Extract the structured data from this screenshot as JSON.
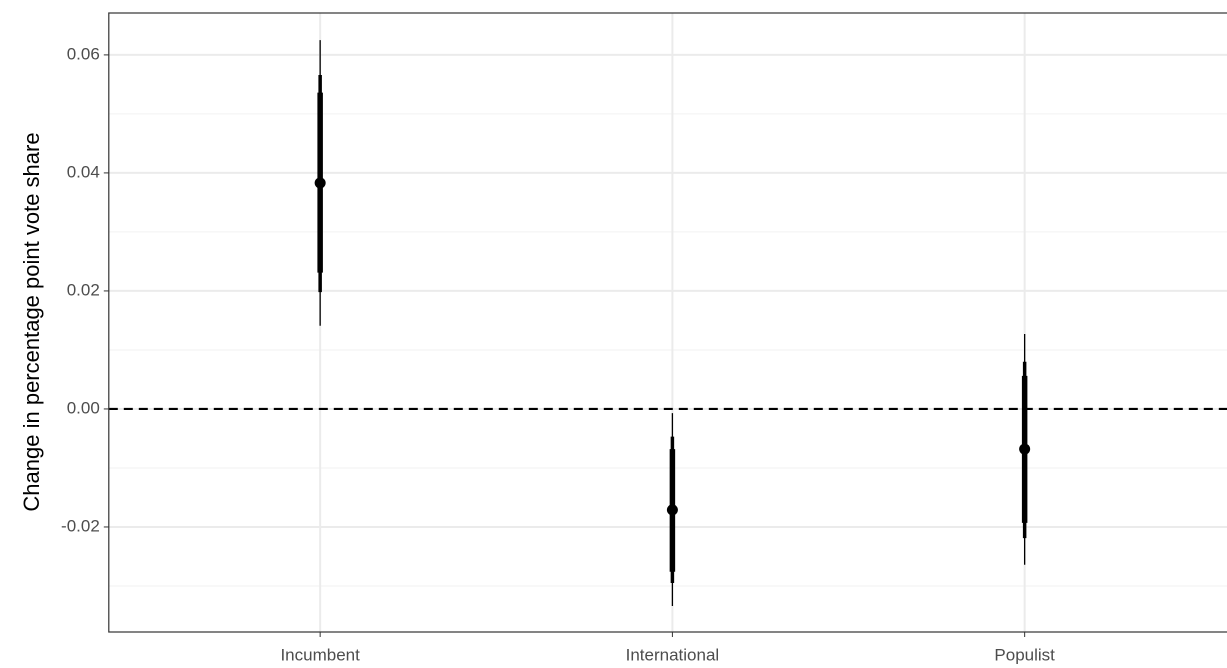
{
  "chart_data": {
    "type": "pointrange",
    "y_label": "Change in percentage point vote share",
    "categories": [
      "Incumbent",
      "International",
      "Populist"
    ],
    "values": [
      0.0383,
      -0.0171,
      -0.0068
    ],
    "intervals": [
      {
        "lower": [
          0.0141,
          -0.0334,
          -0.0264
        ],
        "upper": [
          0.0625,
          -0.0007,
          0.0127
        ]
      },
      {
        "lower": [
          0.0198,
          -0.0295,
          -0.0219
        ],
        "upper": [
          0.0566,
          -0.0047,
          0.008
        ]
      },
      {
        "lower": [
          0.0231,
          -0.0276,
          -0.0193
        ],
        "upper": [
          0.0536,
          -0.0068,
          0.0056
        ]
      }
    ],
    "color": "#000000",
    "ylim": [
      -0.0378,
      0.0671
    ],
    "yticks": [
      -0.02,
      {
        "value": 0,
        "label": "0.00"
      },
      0.02,
      0.04,
      0.06
    ],
    "minor_yticks": [
      -0.03,
      -0.01,
      0.01,
      0.03,
      0.05
    ],
    "hline": 0,
    "grid": true
  }
}
